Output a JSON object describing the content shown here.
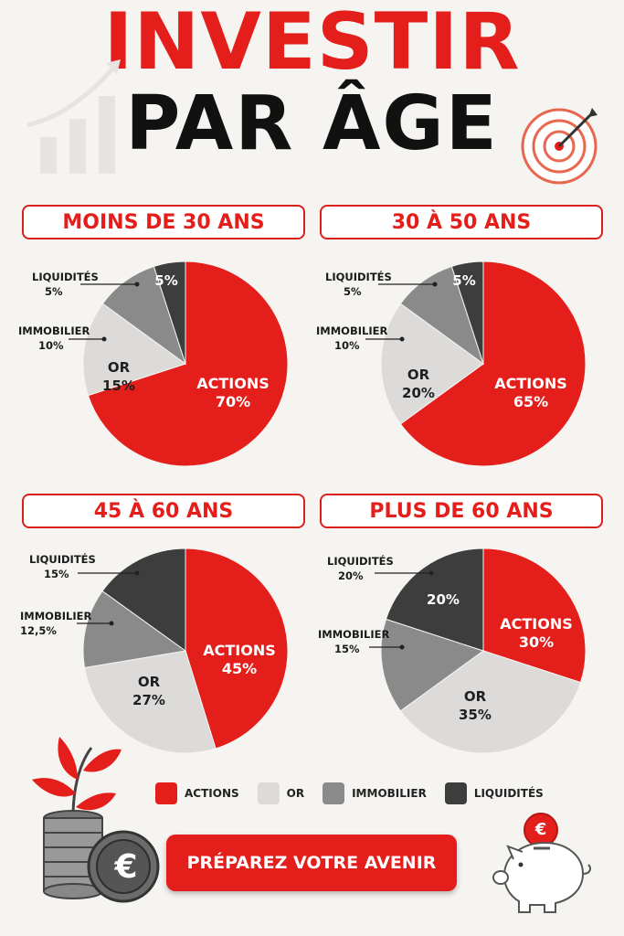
{
  "title": {
    "line1": "INVESTIR",
    "line2": "PAR ÂGE"
  },
  "colors": {
    "actions": "#e31e1b",
    "or": "#dddbd9",
    "immobilier": "#8a8a8a",
    "liquidites": "#3d3d3d",
    "accent": "#e31e1b"
  },
  "chart_data": [
    {
      "type": "pie",
      "title": "MOINS DE 30 ANS",
      "slices": [
        {
          "name": "ACTIONS",
          "value": 70,
          "label": "70%"
        },
        {
          "name": "OR",
          "value": 15,
          "label": "15%"
        },
        {
          "name": "IMMOBILIER",
          "value": 10,
          "label": "10%"
        },
        {
          "name": "LIQUIDITÉS",
          "value": 5,
          "label": "5%"
        }
      ]
    },
    {
      "type": "pie",
      "title": "30 À 50 ANS",
      "slices": [
        {
          "name": "ACTIONS",
          "value": 65,
          "label": "65%"
        },
        {
          "name": "OR",
          "value": 20,
          "label": "20%"
        },
        {
          "name": "IMMOBILIER",
          "value": 10,
          "label": "10%"
        },
        {
          "name": "LIQUIDITÉS",
          "value": 5,
          "label": "5%"
        }
      ]
    },
    {
      "type": "pie",
      "title": "45 À 60 ANS",
      "slices": [
        {
          "name": "ACTIONS",
          "value": 45,
          "label": "45%"
        },
        {
          "name": "OR",
          "value": 27,
          "label": "27%"
        },
        {
          "name": "IMMOBILIER",
          "value": 12.5,
          "label": "12,5%"
        },
        {
          "name": "LIQUIDITÉS",
          "value": 15,
          "label": "15%"
        }
      ]
    },
    {
      "type": "pie",
      "title": "PLUS DE 60 ANS",
      "slices": [
        {
          "name": "ACTIONS",
          "value": 30,
          "label": "30%"
        },
        {
          "name": "OR",
          "value": 35,
          "label": "35%"
        },
        {
          "name": "IMMOBILIER",
          "value": 15,
          "label": "15%"
        },
        {
          "name": "LIQUIDITÉS",
          "value": 20,
          "label": "20%"
        }
      ]
    }
  ],
  "legend": [
    {
      "name": "ACTIONS",
      "color": "#e31e1b"
    },
    {
      "name": "OR",
      "color": "#dddbd9"
    },
    {
      "name": "IMMOBILIER",
      "color": "#8a8a8a"
    },
    {
      "name": "LIQUIDITÉS",
      "color": "#3d3d3d"
    }
  ],
  "cta": "PRÉPAREZ VOTRE AVENIR",
  "euro_symbol": "€",
  "icons": [
    "bar-growth-icon",
    "target-icon",
    "plant-coins-icon",
    "piggy-bank-icon"
  ]
}
